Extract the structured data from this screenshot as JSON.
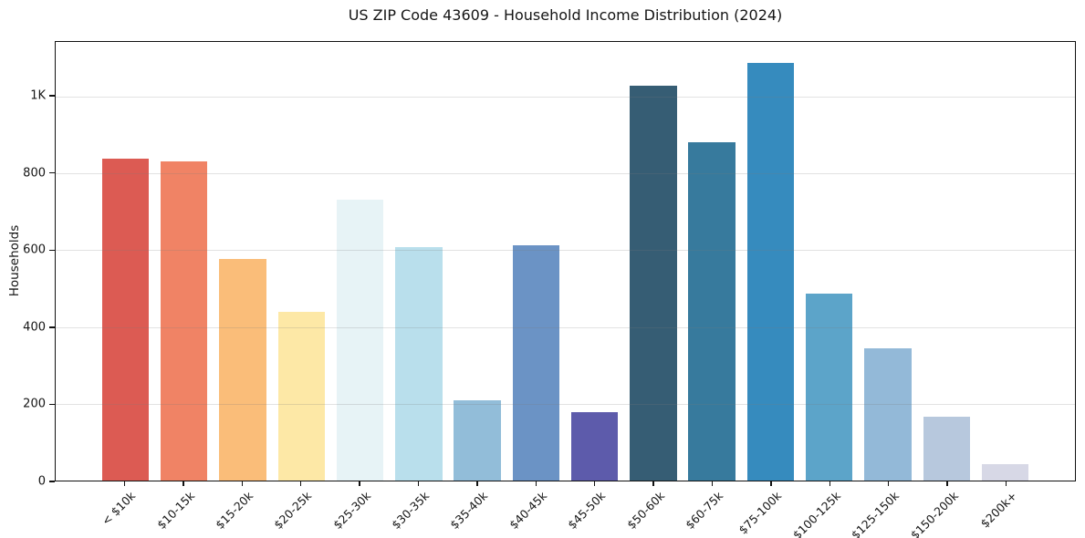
{
  "chart": {
    "title": "US ZIP Code 43609 - Household Income Distribution (2024)",
    "ylabel": "Households"
  },
  "chart_data": {
    "type": "bar",
    "title": "US ZIP Code 43609 - Household Income Distribution (2024)",
    "xlabel": "",
    "ylabel": "Households",
    "categories": [
      "< $10k",
      "$10-15k",
      "$15-20k",
      "$20-25k",
      "$25-30k",
      "$30-35k",
      "$35-40k",
      "$40-45k",
      "$45-50k",
      "$50-60k",
      "$60-75k",
      "$75-100k",
      "$100-125k",
      "$125-150k",
      "$150-200k",
      "$200k+"
    ],
    "values": [
      839,
      832,
      578,
      440,
      732,
      607,
      209,
      613,
      177,
      1027,
      881,
      1088,
      487,
      345,
      167,
      42
    ],
    "bar_colors": [
      "#dc5b53",
      "#f08365",
      "#fabd79",
      "#fde8a6",
      "#e7f3f6",
      "#b9dfec",
      "#92bdd9",
      "#6b93c5",
      "#5d5bab",
      "#365d74",
      "#377a9d",
      "#368bbe",
      "#5ca4c9",
      "#93b9d8",
      "#b7c8dd",
      "#d7d8e6"
    ],
    "ylim": [
      0,
      1142
    ],
    "yticks": [
      {
        "value": 0,
        "label": "0"
      },
      {
        "value": 200,
        "label": "200"
      },
      {
        "value": 400,
        "label": "400"
      },
      {
        "value": 600,
        "label": "600"
      },
      {
        "value": 800,
        "label": "800"
      },
      {
        "value": 1000,
        "label": "1K"
      }
    ],
    "grid": "horizontal-only",
    "legend": "none",
    "x_tick_rotation_deg": 45
  }
}
